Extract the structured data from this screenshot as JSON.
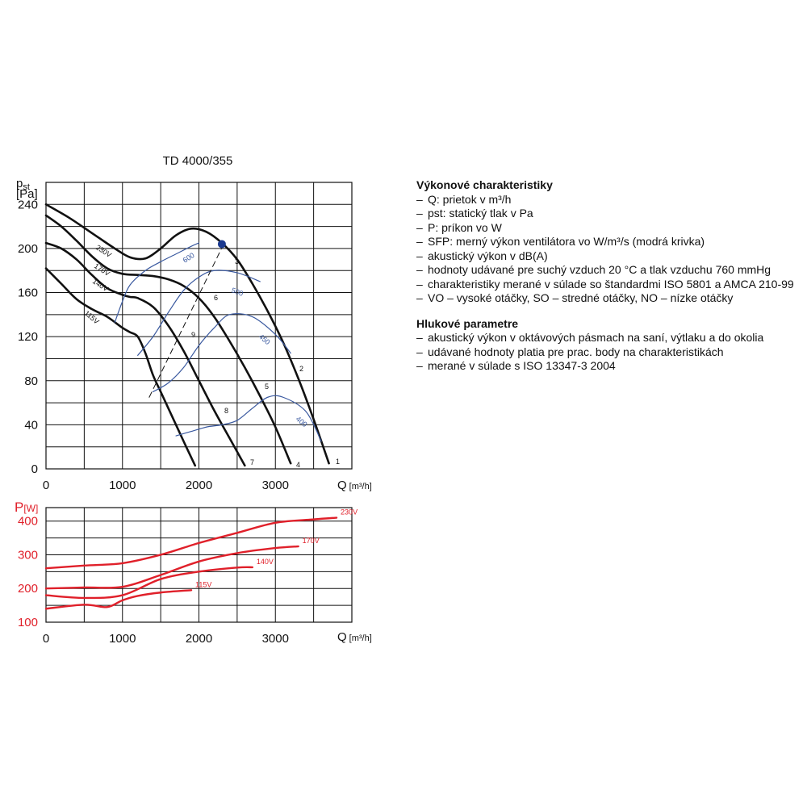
{
  "chart_data": [
    {
      "type": "line",
      "title": "TD 4000/355",
      "ylabel_main": "p",
      "ylabel_sub": "st",
      "ylabel_unit": "[Pa]",
      "xlabel_main": "Q",
      "xlabel_unit": "[m³/h]",
      "xlim": [
        0,
        4000
      ],
      "ylim": [
        0,
        260
      ],
      "grid": true,
      "xticks": [
        0,
        1000,
        2000,
        3000
      ],
      "yticks": [
        0,
        40,
        80,
        120,
        160,
        200,
        240
      ],
      "series": [
        {
          "name": "230V",
          "color": "#111111",
          "x": [
            0,
            300,
            600,
            900,
            1100,
            1300,
            1500,
            1700,
            1900,
            2100,
            2300,
            2500,
            2700,
            2900,
            3100,
            3300,
            3500,
            3700
          ],
          "y": [
            240,
            228,
            214,
            200,
            192,
            191,
            200,
            212,
            218,
            215,
            205,
            190,
            168,
            143,
            115,
            82,
            45,
            5
          ]
        },
        {
          "name": "170V",
          "color": "#111111",
          "x": [
            0,
            200,
            400,
            600,
            800,
            1000,
            1200,
            1400,
            1600,
            1800,
            2000,
            2200,
            2400,
            2600,
            2800,
            3000,
            3200
          ],
          "y": [
            230,
            220,
            207,
            193,
            182,
            177,
            176,
            175,
            172,
            166,
            155,
            138,
            116,
            92,
            66,
            38,
            5
          ]
        },
        {
          "name": "140V",
          "color": "#111111",
          "x": [
            0,
            200,
            400,
            600,
            800,
            1000,
            1100,
            1200,
            1400,
            1600,
            1800,
            2000,
            2200,
            2400,
            2600
          ],
          "y": [
            205,
            200,
            190,
            176,
            164,
            158,
            156,
            155,
            147,
            130,
            107,
            80,
            53,
            28,
            3
          ]
        },
        {
          "name": "115V",
          "color": "#111111",
          "x": [
            0,
            200,
            400,
            600,
            800,
            1000,
            1100,
            1200,
            1300,
            1400,
            1500,
            1600,
            1800,
            1950
          ],
          "y": [
            182,
            168,
            154,
            145,
            138,
            128,
            124,
            120,
            105,
            85,
            70,
            55,
            25,
            3
          ]
        },
        {
          "name": "600",
          "color": "#3b5aa0",
          "x": [
            900,
            1000,
            1100,
            1300,
            1500,
            1700,
            1900,
            2000
          ],
          "y": [
            133,
            152,
            167,
            180,
            188,
            195,
            202,
            205
          ]
        },
        {
          "name": "500",
          "color": "#3b5aa0",
          "x": [
            1200,
            1400,
            1600,
            1800,
            2000,
            2200,
            2500,
            2800
          ],
          "y": [
            103,
            120,
            142,
            162,
            174,
            180,
            178,
            170
          ]
        },
        {
          "name": "450",
          "color": "#3b5aa0",
          "x": [
            1400,
            1600,
            1800,
            2000,
            2200,
            2400,
            2700,
            3000,
            3200
          ],
          "y": [
            70,
            78,
            92,
            112,
            128,
            140,
            138,
            122,
            105
          ]
        },
        {
          "name": "400",
          "color": "#3b5aa0",
          "x": [
            1700,
            1900,
            2100,
            2300,
            2500,
            2700,
            2900,
            3100,
            3400,
            3600
          ],
          "y": [
            30,
            34,
            38,
            40,
            44,
            55,
            65,
            65,
            52,
            25
          ]
        },
        {
          "name": "",
          "color": "#111111",
          "dash": true,
          "x": [
            1350,
            2330
          ],
          "y": [
            65,
            205
          ]
        }
      ],
      "point_labels": [
        "1",
        "2",
        "3",
        "4",
        "5",
        "6",
        "7",
        "8",
        "9"
      ],
      "highlight_point": {
        "x": 2300,
        "y": 204
      }
    },
    {
      "type": "line",
      "ylabel_main": "P",
      "ylabel_unit": "[W]",
      "xlabel_main": "Q",
      "xlabel_unit": "[m³/h]",
      "xlim": [
        0,
        4000
      ],
      "ylim": [
        100,
        440
      ],
      "grid": true,
      "xticks": [
        0,
        1000,
        2000,
        3000
      ],
      "yticks": [
        100,
        200,
        300,
        400
      ],
      "series": [
        {
          "name": "230V",
          "color": "#e0202a",
          "x": [
            0,
            500,
            1000,
            1500,
            2000,
            2500,
            3000,
            3500,
            3800
          ],
          "y": [
            260,
            268,
            275,
            300,
            335,
            365,
            395,
            405,
            410
          ]
        },
        {
          "name": "170V",
          "color": "#e0202a",
          "x": [
            0,
            500,
            1000,
            1500,
            2000,
            2500,
            3000,
            3300
          ],
          "y": [
            200,
            203,
            205,
            240,
            280,
            305,
            320,
            325
          ]
        },
        {
          "name": "140V",
          "color": "#e0202a",
          "x": [
            0,
            500,
            1000,
            1500,
            2000,
            2500,
            2700
          ],
          "y": [
            180,
            172,
            180,
            228,
            250,
            262,
            263
          ]
        },
        {
          "name": "115V",
          "color": "#e0202a",
          "x": [
            0,
            500,
            800,
            1000,
            1200,
            1500,
            1900
          ],
          "y": [
            140,
            152,
            145,
            165,
            178,
            188,
            195
          ]
        }
      ]
    }
  ],
  "notes": {
    "section1_title": "Výkonové charakteristiky",
    "section1_items": [
      "Q: prietok v m³/h",
      "pst: statický tlak v Pa",
      "P: príkon vo W",
      "SFP: merný výkon ventilátora vo W/m³/s (modrá krivka)",
      "akustický výkon v dB(A)",
      "hodnoty udávané pre suchý vzduch 20 °C a tlak vzduchu 760 mmHg",
      "charakteristiky merané v súlade so štandardmi ISO 5801 a AMCA 210-99",
      "VO – vysoké otáčky, SO – stredné otáčky, NO – nízke otáčky"
    ],
    "section2_title": "Hlukové parametre",
    "section2_items": [
      "akustický výkon v oktávových pásmach na saní, výtlaku a do okolia",
      "udávané hodnoty platia pre prac. body na charakteristikách",
      "merané v súlade s ISO 13347-3 2004"
    ]
  }
}
